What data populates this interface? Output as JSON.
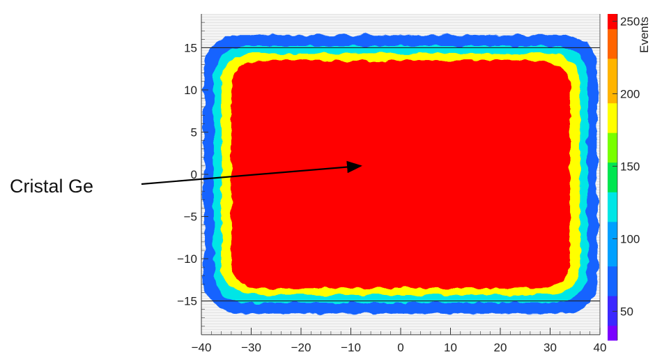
{
  "chart_data": {
    "type": "heatmap",
    "title": "",
    "xlabel": "",
    "ylabel": "",
    "zlabel": "Events",
    "xlim": [
      -40,
      40
    ],
    "ylim": [
      -19,
      19
    ],
    "zlim": [
      30,
      255
    ],
    "x_ticks": [
      "−40",
      "−30",
      "−20",
      "−10",
      "0",
      "10",
      "20",
      "30",
      "40"
    ],
    "y_ticks": [
      "15",
      "10",
      "5",
      "0",
      "−5",
      "−10",
      "−15"
    ],
    "z_ticks": [
      "50",
      "100",
      "150",
      "200",
      "250"
    ],
    "grid": true,
    "reference_lines_y": [
      15,
      -15
    ],
    "colormap": [
      "#7a00ff",
      "#3c28ff",
      "#1464ff",
      "#00a0ff",
      "#00e6e6",
      "#00e650",
      "#78ff00",
      "#ffff00",
      "#ffb400",
      "#ff6400",
      "#ff0000"
    ],
    "regions": [
      {
        "level": 255,
        "x_extent": [
          -34,
          34
        ],
        "y_extent": [
          -13.5,
          13.5
        ]
      },
      {
        "level": 190,
        "x_extent": [
          -36,
          36
        ],
        "y_extent": [
          -14.3,
          14.3
        ]
      },
      {
        "level": 130,
        "x_extent": [
          -37.5,
          37.5
        ],
        "y_extent": [
          -15.2,
          15.2
        ]
      },
      {
        "level": 70,
        "x_extent": [
          -39.5,
          39.5
        ],
        "y_extent": [
          -16.5,
          16.5
        ]
      }
    ]
  },
  "annotation": {
    "label": "Cristal Ge",
    "points_to": [
      -8,
      1
    ]
  }
}
